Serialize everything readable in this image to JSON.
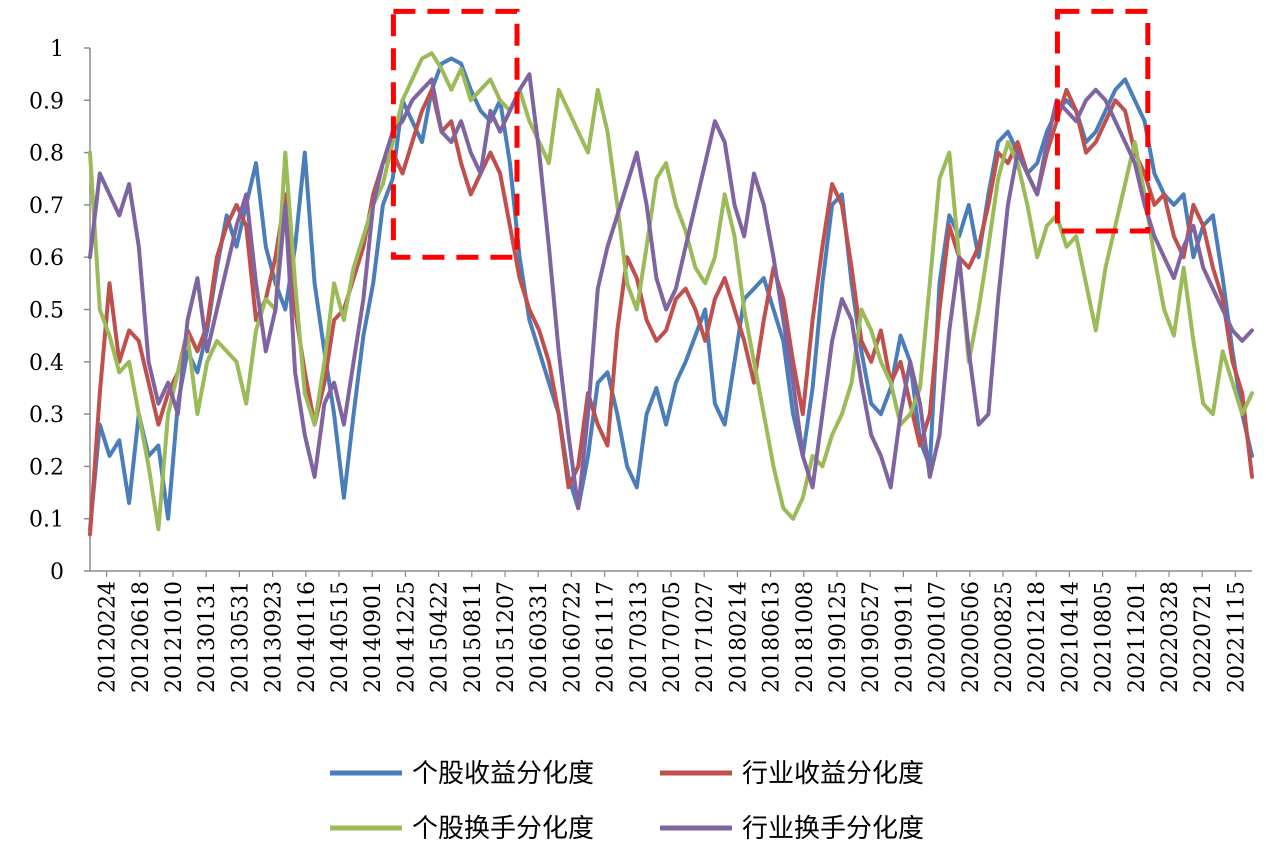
{
  "chart_data": {
    "type": "line",
    "title": "",
    "xlabel": "",
    "ylabel": "",
    "ylim": [
      0,
      1
    ],
    "yticks": [
      "0",
      "0.1",
      "0.2",
      "0.3",
      "0.4",
      "0.5",
      "0.6",
      "0.7",
      "0.8",
      "0.9",
      "1"
    ],
    "x_tick_labels": [
      "20120224",
      "20120618",
      "20121010",
      "20130131",
      "20130531",
      "20130923",
      "20140116",
      "20140515",
      "20140901",
      "20141225",
      "20150422",
      "20150811",
      "20151207",
      "20160331",
      "20160722",
      "20161117",
      "20170313",
      "20170705",
      "20171027",
      "20180214",
      "20180613",
      "20181008",
      "20190125",
      "20190527",
      "20190911",
      "20200107",
      "20200506",
      "20200825",
      "20201218",
      "20210414",
      "20210805",
      "20211201",
      "20220328",
      "20220721",
      "20221115"
    ],
    "series": [
      {
        "name": "个股收益分化度",
        "color": "#4a7ebb",
        "values": [
          0.08,
          0.28,
          0.22,
          0.25,
          0.13,
          0.3,
          0.22,
          0.24,
          0.1,
          0.32,
          0.42,
          0.38,
          0.46,
          0.58,
          0.68,
          0.62,
          0.7,
          0.78,
          0.62,
          0.55,
          0.5,
          0.62,
          0.8,
          0.55,
          0.42,
          0.3,
          0.14,
          0.3,
          0.45,
          0.55,
          0.7,
          0.75,
          0.9,
          0.86,
          0.82,
          0.92,
          0.97,
          0.98,
          0.97,
          0.92,
          0.88,
          0.86,
          0.9,
          0.78,
          0.6,
          0.48,
          0.42,
          0.36,
          0.3,
          0.18,
          0.12,
          0.22,
          0.36,
          0.38,
          0.3,
          0.2,
          0.16,
          0.3,
          0.35,
          0.28,
          0.36,
          0.4,
          0.45,
          0.5,
          0.32,
          0.28,
          0.4,
          0.52,
          0.54,
          0.56,
          0.5,
          0.44,
          0.3,
          0.22,
          0.35,
          0.55,
          0.7,
          0.72,
          0.55,
          0.42,
          0.32,
          0.3,
          0.35,
          0.45,
          0.4,
          0.25,
          0.2,
          0.55,
          0.68,
          0.64,
          0.7,
          0.6,
          0.72,
          0.82,
          0.84,
          0.8,
          0.76,
          0.78,
          0.84,
          0.88,
          0.9,
          0.88,
          0.82,
          0.84,
          0.88,
          0.92,
          0.94,
          0.9,
          0.86,
          0.76,
          0.72,
          0.7,
          0.72,
          0.6,
          0.66,
          0.68,
          0.56,
          0.42,
          0.3,
          0.22
        ]
      },
      {
        "name": "行业收益分化度",
        "color": "#c0504d",
        "values": [
          0.07,
          0.34,
          0.55,
          0.4,
          0.46,
          0.44,
          0.36,
          0.28,
          0.34,
          0.38,
          0.46,
          0.42,
          0.47,
          0.6,
          0.66,
          0.7,
          0.66,
          0.48,
          0.52,
          0.6,
          0.72,
          0.5,
          0.38,
          0.28,
          0.36,
          0.48,
          0.5,
          0.56,
          0.62,
          0.72,
          0.78,
          0.8,
          0.76,
          0.82,
          0.88,
          0.92,
          0.84,
          0.86,
          0.78,
          0.72,
          0.76,
          0.8,
          0.76,
          0.66,
          0.56,
          0.5,
          0.46,
          0.4,
          0.3,
          0.16,
          0.2,
          0.34,
          0.28,
          0.24,
          0.46,
          0.6,
          0.56,
          0.48,
          0.44,
          0.46,
          0.52,
          0.54,
          0.5,
          0.44,
          0.52,
          0.56,
          0.5,
          0.44,
          0.36,
          0.48,
          0.58,
          0.52,
          0.4,
          0.3,
          0.48,
          0.62,
          0.74,
          0.7,
          0.58,
          0.44,
          0.4,
          0.46,
          0.36,
          0.4,
          0.32,
          0.24,
          0.3,
          0.5,
          0.66,
          0.6,
          0.58,
          0.62,
          0.7,
          0.8,
          0.78,
          0.82,
          0.76,
          0.72,
          0.8,
          0.86,
          0.92,
          0.88,
          0.8,
          0.82,
          0.86,
          0.9,
          0.88,
          0.8,
          0.76,
          0.7,
          0.72,
          0.64,
          0.6,
          0.7,
          0.66,
          0.58,
          0.52,
          0.4,
          0.34,
          0.18
        ]
      },
      {
        "name": "个股换手分化度",
        "color": "#9bbb59",
        "values": [
          0.8,
          0.5,
          0.45,
          0.38,
          0.4,
          0.3,
          0.2,
          0.08,
          0.3,
          0.38,
          0.45,
          0.3,
          0.4,
          0.44,
          0.42,
          0.4,
          0.32,
          0.46,
          0.52,
          0.5,
          0.8,
          0.55,
          0.34,
          0.28,
          0.4,
          0.55,
          0.48,
          0.58,
          0.64,
          0.7,
          0.74,
          0.82,
          0.9,
          0.94,
          0.98,
          0.99,
          0.96,
          0.92,
          0.96,
          0.9,
          0.92,
          0.94,
          0.9,
          0.88,
          0.92,
          0.86,
          0.82,
          0.78,
          0.92,
          0.88,
          0.84,
          0.8,
          0.92,
          0.84,
          0.7,
          0.55,
          0.5,
          0.62,
          0.75,
          0.78,
          0.7,
          0.65,
          0.58,
          0.55,
          0.6,
          0.72,
          0.64,
          0.5,
          0.4,
          0.3,
          0.2,
          0.12,
          0.1,
          0.14,
          0.22,
          0.2,
          0.26,
          0.3,
          0.36,
          0.5,
          0.46,
          0.4,
          0.36,
          0.28,
          0.3,
          0.35,
          0.55,
          0.75,
          0.8,
          0.6,
          0.4,
          0.5,
          0.62,
          0.75,
          0.82,
          0.78,
          0.7,
          0.6,
          0.66,
          0.68,
          0.62,
          0.64,
          0.55,
          0.46,
          0.58,
          0.66,
          0.74,
          0.82,
          0.72,
          0.6,
          0.5,
          0.45,
          0.58,
          0.44,
          0.32,
          0.3,
          0.42,
          0.36,
          0.3,
          0.34
        ]
      },
      {
        "name": "行业换手分化度",
        "color": "#8064a2",
        "values": [
          0.6,
          0.76,
          0.72,
          0.68,
          0.74,
          0.62,
          0.4,
          0.32,
          0.36,
          0.3,
          0.48,
          0.56,
          0.42,
          0.5,
          0.58,
          0.66,
          0.72,
          0.55,
          0.42,
          0.5,
          0.7,
          0.38,
          0.26,
          0.18,
          0.32,
          0.36,
          0.28,
          0.4,
          0.52,
          0.7,
          0.78,
          0.84,
          0.86,
          0.9,
          0.92,
          0.94,
          0.84,
          0.82,
          0.86,
          0.8,
          0.76,
          0.88,
          0.84,
          0.88,
          0.92,
          0.95,
          0.8,
          0.62,
          0.42,
          0.26,
          0.12,
          0.3,
          0.54,
          0.62,
          0.68,
          0.74,
          0.8,
          0.7,
          0.56,
          0.5,
          0.54,
          0.62,
          0.7,
          0.78,
          0.86,
          0.82,
          0.7,
          0.64,
          0.76,
          0.7,
          0.6,
          0.48,
          0.36,
          0.22,
          0.16,
          0.3,
          0.44,
          0.52,
          0.48,
          0.36,
          0.26,
          0.22,
          0.16,
          0.3,
          0.4,
          0.32,
          0.18,
          0.26,
          0.46,
          0.6,
          0.42,
          0.28,
          0.3,
          0.52,
          0.7,
          0.8,
          0.76,
          0.72,
          0.82,
          0.9,
          0.88,
          0.86,
          0.9,
          0.92,
          0.9,
          0.86,
          0.82,
          0.78,
          0.7,
          0.64,
          0.6,
          0.56,
          0.62,
          0.66,
          0.58,
          0.54,
          0.5,
          0.46,
          0.44,
          0.46
        ]
      }
    ],
    "highlight_boxes": [
      {
        "x_from": "20141225",
        "x_to": "20151207",
        "y_from": 0.6,
        "y_to": 1.07,
        "color": "#ff0000",
        "style": "dashed"
      },
      {
        "x_from": "20210414",
        "x_to": "20211201",
        "y_from": 0.65,
        "y_to": 1.07,
        "color": "#ff0000",
        "style": "dashed"
      }
    ],
    "legend_position": "bottom",
    "grid": false
  }
}
